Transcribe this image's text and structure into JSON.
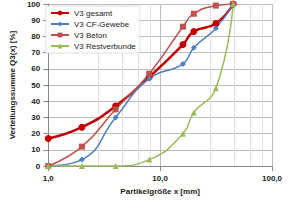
{
  "chart_data": {
    "type": "line",
    "x_label": "Partikelgröße x [mm]",
    "y_label": "Verteilungssumme Q3(x) [%]",
    "log": "x",
    "grid": true,
    "legend": "upper left",
    "xlim": [
      1,
      100
    ],
    "xticks": [
      {
        "value": 1,
        "label": "1,0"
      },
      {
        "value": 10,
        "label": "10,0"
      },
      {
        "value": 100,
        "label": "100,0"
      }
    ],
    "ylim": [
      0,
      100
    ],
    "yticks": [
      0,
      10,
      20,
      30,
      40,
      50,
      60,
      70,
      80,
      90,
      100
    ],
    "x": [
      1,
      2,
      4,
      8,
      16,
      20,
      31.5,
      45
    ],
    "series": [
      {
        "name": "V3 gesamt",
        "color": "#c00000",
        "marker": "circle",
        "line_style": "thick",
        "values": [
          17,
          24,
          37,
          55,
          75,
          83,
          88,
          100
        ]
      },
      {
        "name": "V3 CF-Gewebe",
        "color": "#4f81bd",
        "marker": "diamond",
        "line_style": "solid",
        "values": [
          0,
          4,
          30,
          54,
          63,
          73,
          85,
          100
        ]
      },
      {
        "name": "V3 Beton",
        "color": "#c0504d",
        "marker": "square",
        "line_style": "solid",
        "values": [
          0,
          12,
          35,
          57,
          86,
          94,
          99,
          100
        ]
      },
      {
        "name": "V3 Restverbunde",
        "color": "#9bbb59",
        "marker": "triangle",
        "line_style": "solid",
        "values": [
          0,
          0,
          0,
          4,
          20,
          33,
          48,
          100
        ]
      }
    ]
  }
}
